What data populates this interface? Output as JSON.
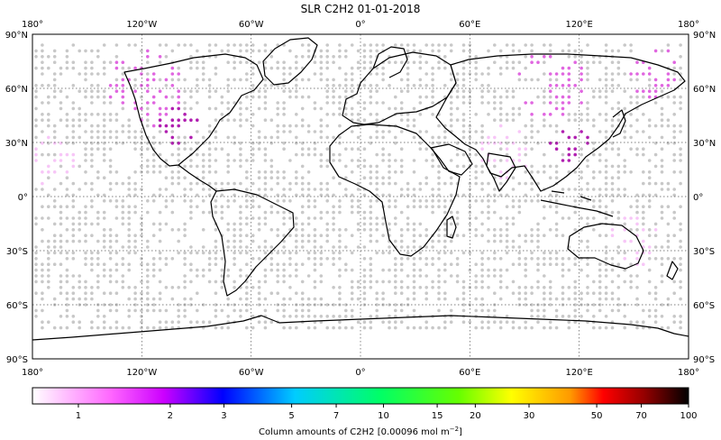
{
  "map": {
    "title": "SLR C2H2 01-01-2018",
    "lon_ticks": [
      "180°",
      "120°W",
      "60°W",
      "0°",
      "60°E",
      "120°E",
      "180°"
    ],
    "lat_ticks": [
      "90°N",
      "60°N",
      "30°N",
      "0°",
      "30°S",
      "60°S",
      "90°S"
    ],
    "extent": {
      "lon": [
        -180,
        180
      ],
      "lat": [
        -90,
        90
      ]
    },
    "grid": true
  },
  "colorbar": {
    "label": "Column amounts of C2H2 [0.00096 mol m",
    "label_sup": "−2",
    "label_end": "]",
    "ticks": [
      "1",
      "2",
      "3",
      "5",
      "7",
      "10",
      "15",
      "20",
      "30",
      "50",
      "70",
      "100"
    ],
    "stops": [
      "#ffffff",
      "#ff66ff",
      "#cc00ff",
      "#0000ff",
      "#00ccff",
      "#00ff66",
      "#66ff00",
      "#ffff00",
      "#ff9900",
      "#ff0000",
      "#990000",
      "#000000"
    ]
  },
  "colors": {
    "no_data_dot": "#c8c8c8",
    "low_value_dot": "#f7c6f7",
    "mid_value_dot": "#e066e0",
    "high_value_dot": "#b020b0",
    "coastline": "#000000"
  }
}
